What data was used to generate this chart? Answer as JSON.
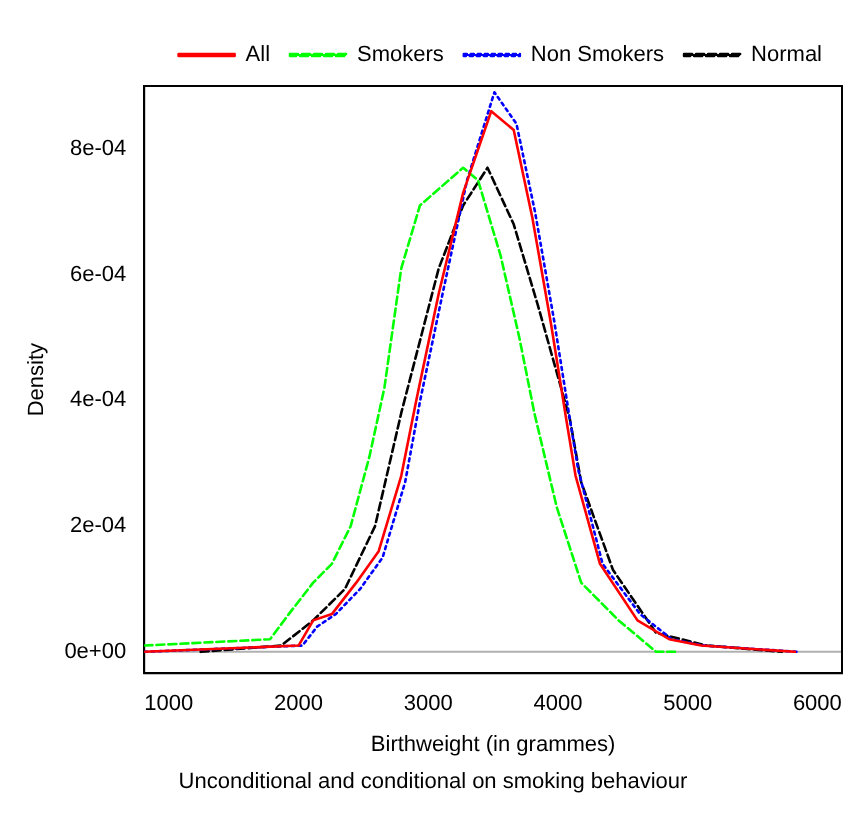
{
  "chart_data": {
    "type": "line",
    "xlabel": "Birthweight (in grammes)",
    "ylabel": "Density",
    "annotations": [
      "Unconditional and conditional on smoking behaviour"
    ],
    "xlim": [
      810,
      6190
    ],
    "xticks": [
      1000,
      2000,
      3000,
      4000,
      5000,
      6000
    ],
    "ylim": [
      -3.4e-05,
      0.0009
    ],
    "yticks": [
      {
        "value": 0,
        "label": "0e+00"
      },
      {
        "value": 0.0002,
        "label": "2e-04"
      },
      {
        "value": 0.0004,
        "label": "4e-04"
      },
      {
        "value": 0.0006,
        "label": "6e-04"
      },
      {
        "value": 0.0008,
        "label": "8e-04"
      }
    ],
    "grid": false,
    "legend": "top right",
    "marker": "none",
    "ref_lines": [
      {
        "axis": "y",
        "value": 0,
        "color": "#b0b0b0"
      }
    ],
    "series": [
      {
        "name": "All",
        "color": "#ff0000",
        "line_style": "solid",
        "x": [
          812,
          2000,
          2113,
          2257,
          2445,
          2618,
          2792,
          2908,
          3081,
          3269,
          3486,
          3659,
          3803,
          3948,
          4064,
          4136,
          4324,
          4613,
          4858,
          5104,
          5827
        ],
        "values": [
          0,
          1e-05,
          5e-05,
          6e-05,
          0.00011,
          0.00016,
          0.00028,
          0.0004,
          0.00057,
          0.00073,
          0.00086,
          0.00083,
          0.00069,
          0.00052,
          0.00037,
          0.00028,
          0.00014,
          5e-05,
          2e-05,
          1e-05,
          0
        ]
      },
      {
        "name": "Smokers",
        "color": "#00ff00",
        "line_style": "dashed",
        "x": [
          812,
          1780,
          1925,
          2113,
          2257,
          2402,
          2546,
          2662,
          2792,
          2936,
          3269,
          3384,
          3558,
          3702,
          3818,
          3991,
          4179,
          4468,
          4757,
          4902
        ],
        "values": [
          1e-05,
          2e-05,
          6e-05,
          0.00011,
          0.00014,
          0.0002,
          0.00031,
          0.00042,
          0.00061,
          0.00071,
          0.00077,
          0.00075,
          0.00063,
          0.0005,
          0.00038,
          0.00023,
          0.00011,
          5e-05,
          0,
          0
        ]
      },
      {
        "name": "Non Smokers",
        "color": "#0000ff",
        "line_style": "dotted",
        "x": [
          812,
          2030,
          2143,
          2287,
          2475,
          2648,
          2822,
          2938,
          3111,
          3299,
          3510,
          3680,
          3823,
          3968,
          4084,
          4156,
          4344,
          4633,
          4878,
          5124,
          5847
        ],
        "values": [
          0,
          1e-05,
          4e-05,
          6e-05,
          0.0001,
          0.00015,
          0.00027,
          0.0004,
          0.00057,
          0.00075,
          0.00089,
          0.00084,
          0.0007,
          0.00053,
          0.00038,
          0.00029,
          0.00014,
          6e-05,
          2e-05,
          1e-05,
          0
        ]
      },
      {
        "name": "Normal",
        "color": "#000000",
        "line_style": "dashed",
        "x": [
          1246,
          1867,
          2113,
          2358,
          2590,
          2792,
          3081,
          3269,
          3457,
          3659,
          3847,
          4092,
          4179,
          4425,
          4757,
          5147,
          5725
        ],
        "values": [
          0,
          1e-05,
          5e-05,
          0.0001,
          0.0002,
          0.00038,
          0.00061,
          0.00071,
          0.00077,
          0.00068,
          0.00055,
          0.00037,
          0.00027,
          0.00013,
          3e-05,
          1e-05,
          0
        ]
      }
    ]
  }
}
